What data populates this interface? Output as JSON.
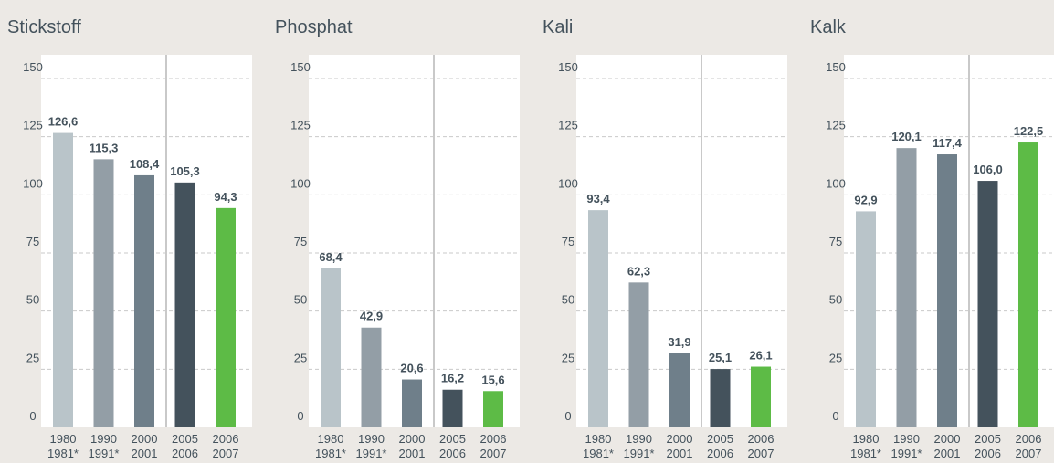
{
  "chart_data": [
    {
      "type": "bar",
      "title": "Stickstoff",
      "categories": [
        [
          "1980",
          "1981*"
        ],
        [
          "1990",
          "1991*"
        ],
        [
          "2000",
          "2001"
        ],
        [
          "2005",
          "2006"
        ],
        [
          "2006",
          "2007"
        ]
      ],
      "values": [
        126.6,
        115.3,
        108.4,
        105.3,
        94.3
      ],
      "value_labels": [
        "126,6",
        "115,3",
        "108,4",
        "105,3",
        "94,3"
      ],
      "colors": [
        "#b9c4c9",
        "#939ea6",
        "#6f7f8a",
        "#44525c",
        "#5dbb46"
      ],
      "ylim": [
        0,
        150
      ],
      "yticks": [
        0,
        25,
        50,
        75,
        100,
        125,
        150
      ],
      "grid": true
    },
    {
      "type": "bar",
      "title": "Phosphat",
      "categories": [
        [
          "1980",
          "1981*"
        ],
        [
          "1990",
          "1991*"
        ],
        [
          "2000",
          "2001"
        ],
        [
          "2005",
          "2006"
        ],
        [
          "2006",
          "2007"
        ]
      ],
      "values": [
        68.4,
        42.9,
        20.6,
        16.2,
        15.6
      ],
      "value_labels": [
        "68,4",
        "42,9",
        "20,6",
        "16,2",
        "15,6"
      ],
      "colors": [
        "#b9c4c9",
        "#939ea6",
        "#6f7f8a",
        "#44525c",
        "#5dbb46"
      ],
      "ylim": [
        0,
        150
      ],
      "yticks": [
        0,
        25,
        50,
        75,
        100,
        125,
        150
      ],
      "grid": true
    },
    {
      "type": "bar",
      "title": "Kali",
      "categories": [
        [
          "1980",
          "1981*"
        ],
        [
          "1990",
          "1991*"
        ],
        [
          "2000",
          "2001"
        ],
        [
          "2005",
          "2006"
        ],
        [
          "2006",
          "2007"
        ]
      ],
      "values": [
        93.4,
        62.3,
        31.9,
        25.1,
        26.1
      ],
      "value_labels": [
        "93,4",
        "62,3",
        "31,9",
        "25,1",
        "26,1"
      ],
      "colors": [
        "#b9c4c9",
        "#939ea6",
        "#6f7f8a",
        "#44525c",
        "#5dbb46"
      ],
      "ylim": [
        0,
        150
      ],
      "yticks": [
        0,
        25,
        50,
        75,
        100,
        125,
        150
      ],
      "grid": true
    },
    {
      "type": "bar",
      "title": "Kalk",
      "categories": [
        [
          "1980",
          "1981*"
        ],
        [
          "1990",
          "1991*"
        ],
        [
          "2000",
          "2001"
        ],
        [
          "2005",
          "2006"
        ],
        [
          "2006",
          "2007"
        ]
      ],
      "values": [
        92.9,
        120.1,
        117.4,
        106.0,
        122.5
      ],
      "value_labels": [
        "92,9",
        "120,1",
        "117,4",
        "106,0",
        "122,5"
      ],
      "colors": [
        "#b9c4c9",
        "#939ea6",
        "#6f7f8a",
        "#44525c",
        "#5dbb46"
      ],
      "ylim": [
        0,
        150
      ],
      "yticks": [
        0,
        25,
        50,
        75,
        100,
        125,
        150
      ],
      "grid": true
    }
  ]
}
